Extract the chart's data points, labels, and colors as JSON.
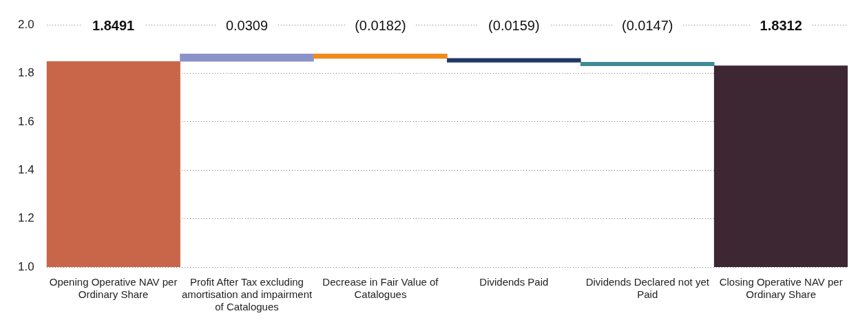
{
  "chart_data": {
    "type": "bar",
    "categories": [
      "Opening Operative NAV per Ordinary Share",
      "Profit After Tax excluding amortisation and impairment of Catalogues",
      "Decrease in Fair Value of Catalogues",
      "Dividends Paid",
      "Dividends Declared not yet Paid",
      "Closing Operative NAV per Ordinary Share"
    ],
    "values": [
      1.8491,
      0.0309,
      -0.0182,
      -0.0159,
      -0.0147,
      1.8312
    ],
    "base": [
      null,
      1.8491,
      1.88,
      1.8618,
      1.8459,
      null
    ],
    "colors": [
      "#c9664a",
      "#8c93c8",
      "#f08a1c",
      "#1f3864",
      "#3f8a96",
      "#3d2733"
    ],
    "value_labels": [
      "1.8491",
      "0.0309",
      "(0.0182)",
      "(0.0159)",
      "(0.0147)",
      "1.8312"
    ],
    "ylim": [
      1.0,
      2.0
    ],
    "yticks": [
      {
        "value": 1.0,
        "label": "1.0"
      },
      {
        "value": 1.2,
        "label": "1.2"
      },
      {
        "value": 1.4,
        "label": "1.4"
      },
      {
        "value": 1.6,
        "label": "1.6"
      },
      {
        "value": 1.8,
        "label": "1.8"
      },
      {
        "value": 2.0,
        "label": "2.0"
      }
    ],
    "grid": "y",
    "legend": false
  }
}
